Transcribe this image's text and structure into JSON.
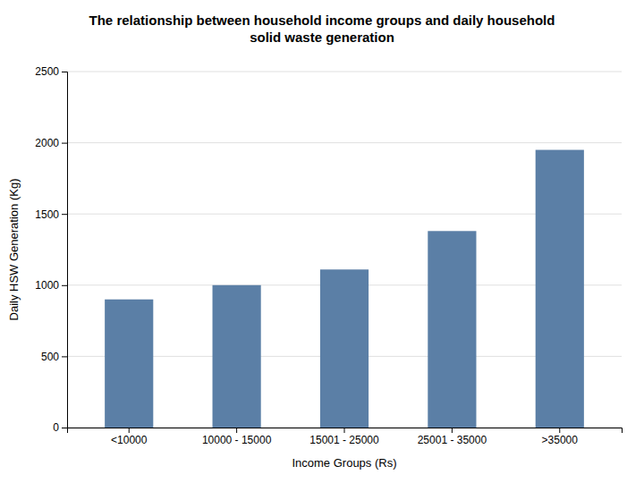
{
  "chart_data": {
    "type": "bar",
    "title": "The relationship between household income groups and daily household\nsolid waste generation",
    "xlabel": "Income Groups (Rs)",
    "ylabel": "Daily HSW Generation (Kg)",
    "categories": [
      "<10000",
      "10000 - 15000",
      "15001 - 25000",
      "25001 - 35000",
      ">35000"
    ],
    "values": [
      900,
      1000,
      1110,
      1380,
      1950
    ],
    "color": "#5B7FA6",
    "ylim": [
      0,
      2500
    ],
    "yticks": [
      0,
      500,
      1000,
      1500,
      2000,
      2500
    ],
    "grid": true
  }
}
